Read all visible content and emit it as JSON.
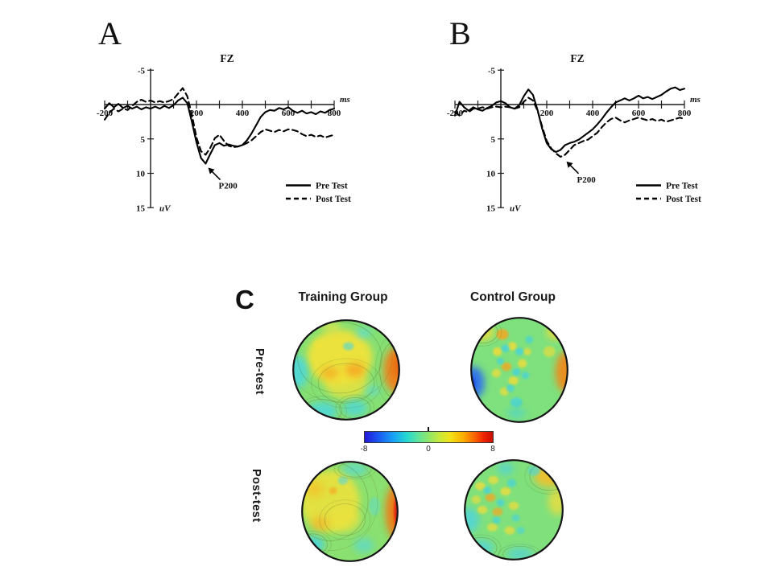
{
  "chart_data": [
    {
      "id": "erp-a",
      "panel_letter": "A",
      "type": "line",
      "title": "FZ",
      "xlabel": "ms",
      "ylabel": "uV",
      "xlim": [
        -200,
        800
      ],
      "ylim": [
        -5,
        15
      ],
      "y_axis_inverted": true,
      "x_tick_interval": 100,
      "x_tick_label_values": [
        -200,
        200,
        400,
        600,
        800
      ],
      "x_tick_labels": [
        "-200",
        "200",
        "400",
        "600",
        "800"
      ],
      "y_tick_values": [
        -5,
        5,
        10,
        15
      ],
      "y_tick_labels": [
        "-5",
        "5",
        "10",
        "15"
      ],
      "annotation": {
        "label": "P200",
        "at_ms": 230,
        "at_uv": 8.6
      },
      "legend": {
        "items": [
          {
            "label": "Pre Test",
            "line": "solid"
          },
          {
            "label": "Post Test",
            "line": "dashed"
          }
        ]
      },
      "series": [
        {
          "name": "Pre Test",
          "line": "solid",
          "x_start": -200,
          "x_step": 20,
          "values": [
            0.6,
            -0.2,
            0.4,
            -0.1,
            0.5,
            0.2,
            0.6,
            0.3,
            0.7,
            0.4,
            0.6,
            0.3,
            0.6,
            0.2,
            0.5,
            0.1,
            -0.6,
            -1.0,
            -0.2,
            2.5,
            5.5,
            7.8,
            8.6,
            7.2,
            5.9,
            5.6,
            6.0,
            5.8,
            6.0,
            6.1,
            5.9,
            5.2,
            4.2,
            3.0,
            1.8,
            1.1,
            0.8,
            0.9,
            0.5,
            0.7,
            0.4,
            0.9,
            1.2,
            0.9,
            1.3,
            1.1,
            1.4,
            1.0,
            1.2,
            0.8,
            0.6
          ]
        },
        {
          "name": "Post Test",
          "line": "dashed",
          "x_start": -200,
          "x_step": 20,
          "values": [
            2.2,
            1.2,
            0.6,
            1.0,
            0.6,
            0.8,
            0.2,
            -0.4,
            -0.7,
            -0.4,
            -0.6,
            -0.3,
            -0.5,
            -0.3,
            -0.5,
            -0.8,
            -1.6,
            -2.4,
            -1.2,
            1.5,
            4.8,
            6.8,
            7.3,
            6.3,
            4.9,
            4.4,
            5.3,
            6.0,
            6.2,
            6.1,
            5.9,
            5.6,
            5.2,
            4.6,
            4.0,
            3.6,
            3.8,
            4.0,
            3.7,
            3.9,
            3.6,
            3.7,
            3.9,
            4.3,
            4.6,
            4.4,
            4.7,
            4.5,
            4.8,
            4.6,
            4.4
          ]
        }
      ]
    },
    {
      "id": "erp-b",
      "panel_letter": "B",
      "type": "line",
      "title": "FZ",
      "xlabel": "ms",
      "ylabel": "uV",
      "xlim": [
        -200,
        800
      ],
      "ylim": [
        -5,
        15
      ],
      "y_axis_inverted": true,
      "x_tick_interval": 100,
      "x_tick_label_values": [
        -200,
        200,
        400,
        600,
        800
      ],
      "x_tick_labels": [
        "-200",
        "200",
        "400",
        "600",
        "800"
      ],
      "y_tick_values": [
        -5,
        5,
        10,
        15
      ],
      "y_tick_labels": [
        "-5",
        "5",
        "10",
        "15"
      ],
      "annotation": {
        "label": "P200",
        "at_ms": 265,
        "at_uv": 7.7
      },
      "legend": {
        "items": [
          {
            "label": "Pre Test",
            "line": "solid"
          },
          {
            "label": "Post Test",
            "line": "dashed"
          }
        ]
      },
      "series": [
        {
          "name": "Pre Test",
          "line": "solid",
          "x_start": -200,
          "x_step": 20,
          "values": [
            1.6,
            -0.4,
            0.4,
            0.9,
            0.4,
            0.7,
            0.9,
            0.5,
            0.2,
            -0.3,
            -0.5,
            -0.2,
            0.4,
            0.6,
            0.1,
            -1.2,
            -2.2,
            -1.4,
            0.8,
            3.5,
            5.6,
            6.5,
            6.9,
            6.6,
            5.9,
            5.6,
            5.4,
            5.1,
            4.6,
            4.1,
            3.6,
            2.9,
            2.1,
            1.2,
            0.4,
            -0.3,
            -0.6,
            -0.9,
            -0.6,
            -0.9,
            -1.3,
            -0.9,
            -1.1,
            -0.8,
            -1.1,
            -1.4,
            -1.9,
            -2.3,
            -2.5,
            -2.1,
            -2.3
          ]
        },
        {
          "name": "Post Test",
          "line": "dashed",
          "x_start": -200,
          "x_step": 20,
          "values": [
            1.1,
            1.6,
            0.9,
            1.1,
            0.6,
            0.6,
            0.4,
            0.6,
            0.4,
            0.3,
            0.4,
            0.3,
            0.4,
            0.6,
            0.4,
            -0.4,
            -1.0,
            -0.6,
            0.9,
            3.2,
            5.3,
            6.4,
            7.1,
            7.6,
            7.3,
            6.6,
            5.9,
            5.6,
            5.3,
            5.1,
            4.6,
            4.1,
            3.3,
            2.6,
            2.1,
            1.9,
            2.3,
            2.6,
            2.3,
            2.1,
            1.9,
            2.1,
            2.3,
            2.1,
            2.4,
            2.2,
            2.5,
            2.3,
            2.1,
            1.9,
            2.1
          ]
        }
      ]
    },
    {
      "id": "topomaps",
      "panel_letter": "C",
      "type": "heatmap",
      "col_headers": [
        "Training Group",
        "Control Group"
      ],
      "row_headers": [
        "Pre-test",
        "Post-test"
      ],
      "colorbar": {
        "min": -8,
        "mid": 0,
        "max": 8,
        "tick_labels": [
          "-8",
          "0",
          "8"
        ],
        "colormap": "jet"
      },
      "maps": [
        {
          "id": "training-pretest",
          "row": "Pre-test",
          "col": "Training Group",
          "base": "#85e073",
          "summary": "Yellow/orange positivity over fronto-central sites, strongest at right temporal edge; cyan negativity at left edge and posterior sites.",
          "blobs": [
            [
              0.44,
              0.38,
              0.3,
              0.27,
              "#f1e23b",
              0.95
            ],
            [
              0.5,
              0.63,
              0.2,
              0.15,
              "#f1e23b",
              0.75
            ],
            [
              0.58,
              0.5,
              0.09,
              0.07,
              "#f5a623",
              0.85
            ],
            [
              0.35,
              0.53,
              0.08,
              0.06,
              "#f5a623",
              0.7
            ],
            [
              0.96,
              0.5,
              0.12,
              0.22,
              "#f0811c",
              0.95
            ],
            [
              1.0,
              0.46,
              0.06,
              0.12,
              "#e85c10",
              0.9
            ],
            [
              0.05,
              0.52,
              0.1,
              0.16,
              "#4ed7da",
              0.9
            ],
            [
              0.28,
              0.9,
              0.14,
              0.09,
              "#4ed7da",
              0.85
            ],
            [
              0.58,
              0.87,
              0.11,
              0.08,
              "#4ed7da",
              0.8
            ],
            [
              0.74,
              0.7,
              0.07,
              0.05,
              "#5cdcdc",
              0.65
            ],
            [
              0.66,
              0.14,
              0.07,
              0.05,
              "#5cdcdc",
              0.7
            ],
            [
              0.36,
              0.08,
              0.09,
              0.05,
              "#e8e44a",
              0.7
            ],
            [
              0.52,
              0.27,
              0.05,
              0.04,
              "#4ed7da",
              0.6
            ],
            [
              0.25,
              0.25,
              0.05,
              0.04,
              "#f1e23b",
              0.6
            ]
          ]
        },
        {
          "id": "control-pretest",
          "row": "Pre-test",
          "col": "Control Group",
          "base": "#7ee17e",
          "summary": "Blue negativity at left temporal edge, orange positivity at right temporal edge, speckled yellow/cyan foci over central sites.",
          "blobs": [
            [
              0.04,
              0.62,
              0.11,
              0.15,
              "#2f6ef0",
              0.95
            ],
            [
              0.0,
              0.64,
              0.06,
              0.09,
              "#1a49de",
              0.95
            ],
            [
              0.97,
              0.52,
              0.11,
              0.19,
              "#f08a1e",
              0.95
            ],
            [
              0.13,
              0.15,
              0.12,
              0.08,
              "#efdc3a",
              0.85
            ],
            [
              0.33,
              0.17,
              0.06,
              0.05,
              "#f5a623",
              0.85
            ],
            [
              0.87,
              0.15,
              0.1,
              0.07,
              "#efdc3a",
              0.85
            ],
            [
              0.8,
              0.33,
              0.06,
              0.05,
              "#efdc3a",
              0.65
            ],
            [
              0.28,
              0.33,
              0.045,
              0.04,
              "#efdc3a",
              0.85
            ],
            [
              0.43,
              0.28,
              0.045,
              0.04,
              "#efdc3a",
              0.8
            ],
            [
              0.37,
              0.47,
              0.05,
              0.04,
              "#f5a623",
              0.8
            ],
            [
              0.53,
              0.44,
              0.045,
              0.04,
              "#efdc3a",
              0.8
            ],
            [
              0.27,
              0.53,
              0.045,
              0.04,
              "#efdc3a",
              0.75
            ],
            [
              0.44,
              0.6,
              0.05,
              0.04,
              "#efdc3a",
              0.8
            ],
            [
              0.58,
              0.33,
              0.04,
              0.035,
              "#efdc3a",
              0.7
            ],
            [
              0.35,
              0.7,
              0.045,
              0.04,
              "#efdc3a",
              0.7
            ],
            [
              0.36,
              0.3,
              0.04,
              0.035,
              "#46d2dc",
              0.8
            ],
            [
              0.5,
              0.33,
              0.04,
              0.035,
              "#46d2dc",
              0.8
            ],
            [
              0.31,
              0.42,
              0.035,
              0.03,
              "#46d2dc",
              0.75
            ],
            [
              0.47,
              0.52,
              0.04,
              0.035,
              "#46d2dc",
              0.8
            ],
            [
              0.41,
              0.67,
              0.04,
              0.035,
              "#46d2dc",
              0.75
            ],
            [
              0.56,
              0.55,
              0.04,
              0.035,
              "#46d2dc",
              0.7
            ],
            [
              0.6,
              0.22,
              0.04,
              0.035,
              "#46d2dc",
              0.7
            ],
            [
              0.47,
              0.8,
              0.06,
              0.045,
              "#46d2dc",
              0.75
            ],
            [
              0.47,
              0.9,
              0.09,
              0.05,
              "#46d2dc",
              0.6
            ]
          ]
        },
        {
          "id": "training-posttest",
          "row": "Post-test",
          "col": "Training Group",
          "base": "#8ae070",
          "summary": "Strong red positivity at right temporal edge with broad yellow positivity over left/central sites; cyan at left occipital edge.",
          "blobs": [
            [
              0.3,
              0.4,
              0.3,
              0.3,
              "#ece23e",
              0.9
            ],
            [
              0.14,
              0.28,
              0.1,
              0.08,
              "#f2c42c",
              0.75
            ],
            [
              0.45,
              0.58,
              0.16,
              0.12,
              "#ece23e",
              0.7
            ],
            [
              0.2,
              0.62,
              0.09,
              0.07,
              "#f5a623",
              0.55
            ],
            [
              0.97,
              0.5,
              0.11,
              0.27,
              "#f07a18",
              0.95
            ],
            [
              1.01,
              0.5,
              0.065,
              0.19,
              "#de2412",
              0.97
            ],
            [
              0.12,
              0.82,
              0.12,
              0.08,
              "#48d2de",
              0.9
            ],
            [
              0.55,
              0.09,
              0.13,
              0.06,
              "#58d8d8",
              0.7
            ],
            [
              0.64,
              0.83,
              0.1,
              0.07,
              "#58d8d8",
              0.7
            ],
            [
              0.75,
              0.45,
              0.055,
              0.09,
              "#62dcc8",
              0.55
            ],
            [
              0.43,
              0.2,
              0.05,
              0.04,
              "#58d8d8",
              0.6
            ],
            [
              0.33,
              0.3,
              0.04,
              0.035,
              "#f5a623",
              0.65
            ]
          ]
        },
        {
          "id": "control-posttest",
          "row": "Post-test",
          "col": "Control Group",
          "base": "#80e07c",
          "summary": "Mostly green with speckled yellow/cyan central foci and mild yellow-orange positivity at right frontal edge.",
          "blobs": [
            [
              0.85,
              0.17,
              0.15,
              0.11,
              "#f4bf2a",
              0.9
            ],
            [
              0.93,
              0.42,
              0.09,
              0.13,
              "#eedd3c",
              0.8
            ],
            [
              0.06,
              0.6,
              0.1,
              0.12,
              "#50d4da",
              0.85
            ],
            [
              0.18,
              0.87,
              0.12,
              0.08,
              "#50d4da",
              0.8
            ],
            [
              0.56,
              0.93,
              0.13,
              0.06,
              "#50d4da",
              0.75
            ],
            [
              0.42,
              0.1,
              0.08,
              0.06,
              "#50d4da",
              0.75
            ],
            [
              0.7,
              0.12,
              0.06,
              0.05,
              "#50d4da",
              0.6
            ],
            [
              0.17,
              0.27,
              0.05,
              0.04,
              "#eedd3c",
              0.8
            ],
            [
              0.3,
              0.21,
              0.05,
              0.04,
              "#eedd3c",
              0.75
            ],
            [
              0.27,
              0.38,
              0.05,
              0.04,
              "#f5a623",
              0.75
            ],
            [
              0.42,
              0.32,
              0.05,
              0.04,
              "#eedd3c",
              0.8
            ],
            [
              0.19,
              0.5,
              0.05,
              0.04,
              "#eedd3c",
              0.75
            ],
            [
              0.34,
              0.52,
              0.05,
              0.04,
              "#f5a623",
              0.7
            ],
            [
              0.5,
              0.46,
              0.05,
              0.04,
              "#eedd3c",
              0.75
            ],
            [
              0.29,
              0.67,
              0.05,
              0.04,
              "#eedd3c",
              0.7
            ],
            [
              0.46,
              0.7,
              0.05,
              0.04,
              "#eedd3c",
              0.7
            ],
            [
              0.13,
              0.4,
              0.045,
              0.04,
              "#eedd3c",
              0.65
            ],
            [
              0.24,
              0.31,
              0.04,
              0.035,
              "#46d2dc",
              0.75
            ],
            [
              0.37,
              0.43,
              0.04,
              0.035,
              "#46d2dc",
              0.75
            ],
            [
              0.48,
              0.24,
              0.045,
              0.04,
              "#46d2dc",
              0.7
            ],
            [
              0.33,
              0.6,
              0.04,
              0.035,
              "#46d2dc",
              0.7
            ],
            [
              0.52,
              0.58,
              0.04,
              0.035,
              "#46d2dc",
              0.65
            ],
            [
              0.57,
              0.7,
              0.04,
              0.035,
              "#46d2dc",
              0.6
            ]
          ]
        }
      ]
    }
  ]
}
